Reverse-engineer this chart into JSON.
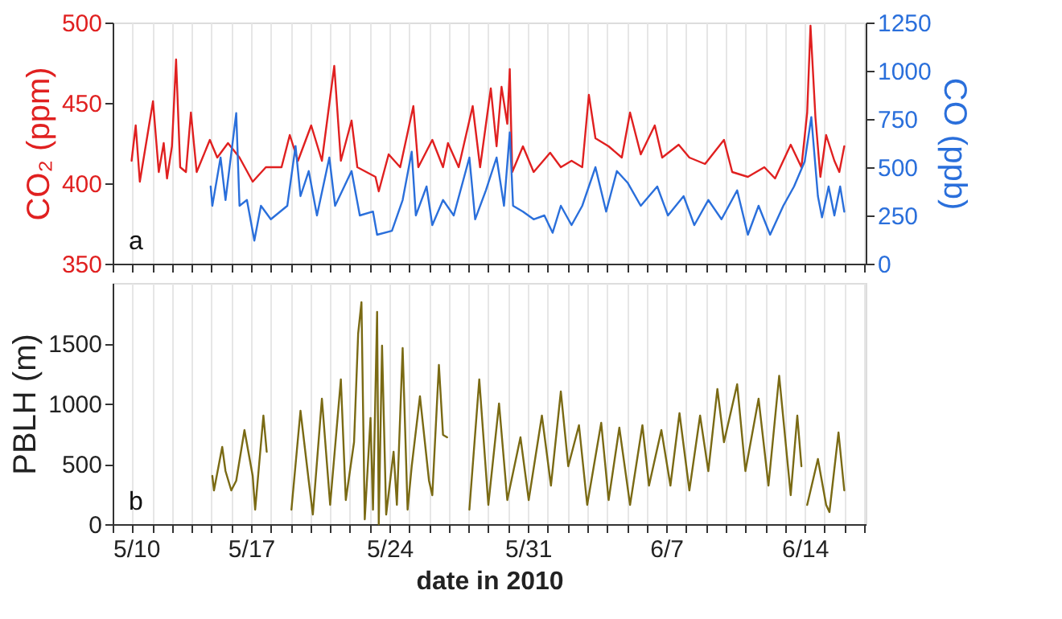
{
  "chart_data": [
    {
      "type": "line",
      "ylabel": "CO₂ (ppm)",
      "y2label": "CO (ppb)",
      "annotations": [
        "a"
      ],
      "grid": "x",
      "tick_labels": "y",
      "xlim": [
        "2010-05-10",
        "2010-06-17T02:00"
      ],
      "xticks": [
        {
          "value": "2010-05-10",
          "label": null
        },
        {
          "value": "2010-05-11",
          "label": null
        },
        {
          "value": "2010-05-12",
          "label": null
        },
        {
          "value": "2010-05-13",
          "label": null
        },
        {
          "value": "2010-05-14",
          "label": null
        },
        {
          "value": "2010-05-15",
          "label": null
        },
        {
          "value": "2010-05-16",
          "label": null
        },
        {
          "value": "2010-05-17",
          "label": null
        },
        {
          "value": "2010-05-18",
          "label": null
        },
        {
          "value": "2010-05-19",
          "label": null
        },
        {
          "value": "2010-05-20",
          "label": null
        },
        {
          "value": "2010-05-21",
          "label": null
        },
        {
          "value": "2010-05-22",
          "label": null
        },
        {
          "value": "2010-05-23",
          "label": null
        },
        {
          "value": "2010-05-24",
          "label": null
        },
        {
          "value": "2010-05-25",
          "label": null
        },
        {
          "value": "2010-05-26",
          "label": null
        },
        {
          "value": "2010-05-27",
          "label": null
        },
        {
          "value": "2010-05-28",
          "label": null
        },
        {
          "value": "2010-05-29",
          "label": null
        },
        {
          "value": "2010-05-30",
          "label": null
        },
        {
          "value": "2010-05-31",
          "label": null
        },
        {
          "value": "2010-06-01",
          "label": null
        },
        {
          "value": "2010-06-02",
          "label": null
        },
        {
          "value": "2010-06-03",
          "label": null
        },
        {
          "value": "2010-06-04",
          "label": null
        },
        {
          "value": "2010-06-05",
          "label": null
        },
        {
          "value": "2010-06-06",
          "label": null
        },
        {
          "value": "2010-06-07",
          "label": null
        },
        {
          "value": "2010-06-08",
          "label": null
        },
        {
          "value": "2010-06-09",
          "label": null
        },
        {
          "value": "2010-06-10",
          "label": null
        },
        {
          "value": "2010-06-11",
          "label": null
        },
        {
          "value": "2010-06-12",
          "label": null
        },
        {
          "value": "2010-06-13",
          "label": null
        },
        {
          "value": "2010-06-14",
          "label": null
        },
        {
          "value": "2010-06-15",
          "label": null
        },
        {
          "value": "2010-06-16",
          "label": null
        },
        {
          "value": "2010-06-17",
          "label": null
        }
      ],
      "ylim": [
        350,
        500
      ],
      "yticks": [
        350,
        400,
        450,
        500
      ],
      "y2lim": [
        0,
        1250
      ],
      "y2ticks": [
        0,
        250,
        500,
        750,
        1000,
        1250
      ],
      "series": [
        {
          "color": "#e02020",
          "x": [
            "2010-05-10T23:00",
            "2010-05-11T04:00",
            "2010-05-11T09:00",
            "2010-05-12T01:00",
            "2010-05-12T08:00",
            "2010-05-12T14:00",
            "2010-05-12T18:00",
            "2010-05-13T00:00",
            "2010-05-13T05:00",
            "2010-05-13T10:00",
            "2010-05-13T17:00",
            "2010-05-13T23:00",
            "2010-05-14T06:00",
            "2010-05-14T22:00",
            "2010-05-15T07:00",
            "2010-05-15T20:00",
            "2010-05-16T10:00",
            "2010-05-17T02:00",
            "2010-05-17T18:00",
            "2010-05-18T13:00",
            "2010-05-18T23:00",
            "2010-05-19T09:00",
            "2010-05-20T01:00",
            "2010-05-20T14:00",
            "2010-05-21T05:00",
            "2010-05-21T13:00",
            "2010-05-22T02:00",
            "2010-05-22T09:00",
            "2010-05-23T07:00",
            "2010-05-23T11:00",
            "2010-05-23T23:00",
            "2010-05-24T13:00",
            "2010-05-25T05:00",
            "2010-05-25T11:00",
            "2010-05-26T04:00",
            "2010-05-26T17:00",
            "2010-05-26T23:00",
            "2010-05-27T12:00",
            "2010-05-28T05:00",
            "2010-05-28T14:00",
            "2010-05-29T03:00",
            "2010-05-29T10:00",
            "2010-05-29T16:00",
            "2010-05-29T23:00",
            "2010-05-30T02:00",
            "2010-05-30T05:00",
            "2010-05-30T18:00",
            "2010-05-31T07:00",
            "2010-06-01T03:00",
            "2010-06-01T16:00",
            "2010-06-02T05:00",
            "2010-06-02T18:00",
            "2010-06-03T02:00",
            "2010-06-03T10:00",
            "2010-06-04T02:00",
            "2010-06-04T18:00",
            "2010-06-05T04:00",
            "2010-06-05T17:00",
            "2010-06-06T10:00",
            "2010-06-06T19:00",
            "2010-06-07T15:00",
            "2010-06-08T04:00",
            "2010-06-08T23:00",
            "2010-06-09T22:00",
            "2010-06-10T08:00",
            "2010-06-11T03:00",
            "2010-06-11T23:00",
            "2010-06-12T12:00",
            "2010-06-13T07:00",
            "2010-06-13T20:00",
            "2010-06-14T03:00",
            "2010-06-14T07:00",
            "2010-06-14T13:00",
            "2010-06-14T19:00",
            "2010-06-15T02:00",
            "2010-06-15T12:00",
            "2010-06-15T18:00",
            "2010-06-16T00:00"
          ],
          "values": [
            414,
            436,
            401,
            451,
            407,
            425,
            403,
            423,
            477,
            410,
            407,
            444,
            407,
            427,
            416,
            425,
            416,
            401,
            410,
            410,
            430,
            414,
            436,
            414,
            473,
            414,
            439,
            410,
            404,
            395,
            418,
            410,
            448,
            410,
            427,
            410,
            425,
            410,
            448,
            410,
            459,
            423,
            460,
            437,
            471,
            407,
            423,
            407,
            419,
            410,
            414,
            410,
            455,
            428,
            423,
            416,
            444,
            418,
            436,
            416,
            424,
            416,
            412,
            427,
            407,
            404,
            410,
            403,
            424,
            410,
            444,
            498,
            441,
            404,
            430,
            414,
            407,
            423
          ]
        },
        {
          "color": "#2a6fdb",
          "axis": "y2",
          "x": [
            "2010-05-14T23:00",
            "2010-05-15T01:00",
            "2010-05-15T11:00",
            "2010-05-15T17:00",
            "2010-05-16T06:00",
            "2010-05-16T10:00",
            "2010-05-16T19:00",
            "2010-05-17T04:00",
            "2010-05-17T12:00",
            "2010-05-18T00:00",
            "2010-05-18T20:00",
            "2010-05-19T06:00",
            "2010-05-19T12:00",
            "2010-05-19T22:00",
            "2010-05-20T08:00",
            "2010-05-20T23:00",
            "2010-05-21T06:00",
            "2010-05-22T02:00",
            "2010-05-22T12:00",
            "2010-05-23T04:00",
            "2010-05-23T09:00",
            "2010-05-24T03:00",
            "2010-05-24T16:00",
            "2010-05-25T03:00",
            "2010-05-25T08:00",
            "2010-05-25T21:00",
            "2010-05-26T04:00",
            "2010-05-26T17:00",
            "2010-05-27T06:00",
            "2010-05-28T01:00",
            "2010-05-28T08:00",
            "2010-05-28T21:00",
            "2010-05-29T10:00",
            "2010-05-29T19:00",
            "2010-05-30T02:00",
            "2010-05-30T06:00",
            "2010-05-30T18:00",
            "2010-05-31T07:00",
            "2010-05-31T20:00",
            "2010-06-01T06:00",
            "2010-06-01T16:00",
            "2010-06-02T05:00",
            "2010-06-02T18:00",
            "2010-06-03T10:00",
            "2010-06-03T23:00",
            "2010-06-04T12:00",
            "2010-06-05T01:00",
            "2010-06-05T17:00",
            "2010-06-06T13:00",
            "2010-06-07T02:00",
            "2010-06-07T21:00",
            "2010-06-08T10:00",
            "2010-06-09T03:00",
            "2010-06-09T19:00",
            "2010-06-10T14:00",
            "2010-06-11T03:00",
            "2010-06-11T16:00",
            "2010-06-12T06:00",
            "2010-06-12T22:00",
            "2010-06-13T11:00",
            "2010-06-14T00:00",
            "2010-06-14T08:00",
            "2010-06-14T16:00",
            "2010-06-14T21:00",
            "2010-06-15T05:00",
            "2010-06-15T12:00",
            "2010-06-15T19:00",
            "2010-06-16T00:00"
          ],
          "values": [
            400,
            300,
            550,
            330,
            780,
            300,
            330,
            120,
            300,
            230,
            300,
            610,
            350,
            480,
            250,
            550,
            300,
            480,
            250,
            270,
            150,
            170,
            330,
            580,
            250,
            400,
            200,
            330,
            250,
            550,
            230,
            380,
            550,
            300,
            680,
            300,
            270,
            230,
            250,
            160,
            300,
            200,
            300,
            500,
            270,
            480,
            420,
            300,
            400,
            250,
            350,
            200,
            330,
            230,
            380,
            150,
            300,
            150,
            300,
            400,
            530,
            760,
            350,
            240,
            400,
            250,
            400,
            270
          ]
        }
      ]
    },
    {
      "type": "line",
      "xlabel": "date in 2010",
      "ylabel": "PBLH (m)",
      "annotations": [
        "b"
      ],
      "grid": "x",
      "xlim": [
        "2010-05-10",
        "2010-06-17T02:00"
      ],
      "xticks": [
        {
          "value": "2010-05-10",
          "label": "5/10"
        },
        {
          "value": "2010-05-11",
          "label": null
        },
        {
          "value": "2010-05-12",
          "label": null
        },
        {
          "value": "2010-05-13",
          "label": null
        },
        {
          "value": "2010-05-14",
          "label": null
        },
        {
          "value": "2010-05-15",
          "label": null
        },
        {
          "value": "2010-05-16",
          "label": null
        },
        {
          "value": "2010-05-17",
          "label": "5/17"
        },
        {
          "value": "2010-05-18",
          "label": null
        },
        {
          "value": "2010-05-19",
          "label": null
        },
        {
          "value": "2010-05-20",
          "label": null
        },
        {
          "value": "2010-05-21",
          "label": null
        },
        {
          "value": "2010-05-22",
          "label": null
        },
        {
          "value": "2010-05-23",
          "label": null
        },
        {
          "value": "2010-05-24",
          "label": "5/24"
        },
        {
          "value": "2010-05-25",
          "label": null
        },
        {
          "value": "2010-05-26",
          "label": null
        },
        {
          "value": "2010-05-27",
          "label": null
        },
        {
          "value": "2010-05-28",
          "label": null
        },
        {
          "value": "2010-05-29",
          "label": null
        },
        {
          "value": "2010-05-30",
          "label": null
        },
        {
          "value": "2010-05-31",
          "label": "5/31"
        },
        {
          "value": "2010-06-01",
          "label": null
        },
        {
          "value": "2010-06-02",
          "label": null
        },
        {
          "value": "2010-06-03",
          "label": null
        },
        {
          "value": "2010-06-04",
          "label": null
        },
        {
          "value": "2010-06-05",
          "label": null
        },
        {
          "value": "2010-06-06",
          "label": null
        },
        {
          "value": "2010-06-07",
          "label": "6/7"
        },
        {
          "value": "2010-06-08",
          "label": null
        },
        {
          "value": "2010-06-09",
          "label": null
        },
        {
          "value": "2010-06-10",
          "label": null
        },
        {
          "value": "2010-06-11",
          "label": null
        },
        {
          "value": "2010-06-12",
          "label": null
        },
        {
          "value": "2010-06-13",
          "label": null
        },
        {
          "value": "2010-06-14",
          "label": "6/14"
        },
        {
          "value": "2010-06-15",
          "label": null
        },
        {
          "value": "2010-06-16",
          "label": null
        },
        {
          "value": "2010-06-17",
          "label": null
        }
      ],
      "ylim": [
        0,
        2000
      ],
      "yticks": [
        0,
        500,
        1000,
        1500
      ],
      "series": [
        {
          "color": "#7a6a14",
          "x": [
            "2010-05-15T01:00",
            "2010-05-15T03:00",
            "2010-05-15T13:00",
            "2010-05-15T17:00",
            "2010-05-16T00:00",
            "2010-05-16T06:00",
            "2010-05-16T16:00",
            "2010-05-17T02:00",
            "2010-05-17T05:00",
            "2010-05-17T15:00",
            "2010-05-17T19:00",
            "2010-05-18T12:00",
            "2010-05-19T01:00",
            "2010-05-19T12:00",
            "2010-05-19T22:00",
            "2010-05-20T03:00",
            "2010-05-20T14:00",
            "2010-05-21T00:00",
            "2010-05-21T13:00",
            "2010-05-21T19:00",
            "2010-05-22T05:00",
            "2010-05-22T10:00",
            "2010-05-22T14:00",
            "2010-05-22T18:00",
            "2010-05-23T01:00",
            "2010-05-23T04:00",
            "2010-05-23T09:00",
            "2010-05-23T11:00",
            "2010-05-23T15:00",
            "2010-05-23T20:00",
            "2010-05-24T05:00",
            "2010-05-24T09:00",
            "2010-05-24T16:00",
            "2010-05-24T22:00",
            "2010-05-25T03:00",
            "2010-05-25T13:00",
            "2010-05-26T00:00",
            "2010-05-26T04:00",
            "2010-05-26T12:00",
            "2010-05-26T17:00",
            "2010-05-26T22:00",
            "2010-05-27T12:00",
            "2010-05-28T01:00",
            "2010-05-28T13:00",
            "2010-05-29T00:00",
            "2010-05-29T13:00",
            "2010-05-29T23:00",
            "2010-05-30T15:00",
            "2010-05-31T01:00",
            "2010-05-31T17:00",
            "2010-06-01T04:00",
            "2010-06-01T16:00",
            "2010-06-02T01:00",
            "2010-06-02T14:00",
            "2010-06-03T00:00",
            "2010-06-03T17:00",
            "2010-06-04T02:00",
            "2010-06-04T15:00",
            "2010-06-05T04:00",
            "2010-06-05T19:00",
            "2010-06-06T03:00",
            "2010-06-06T18:00",
            "2010-06-07T05:00",
            "2010-06-07T16:00",
            "2010-06-08T04:00",
            "2010-06-08T17:00",
            "2010-06-09T03:00",
            "2010-06-09T14:00",
            "2010-06-09T22:00",
            "2010-06-10T14:00",
            "2010-06-11T00:00",
            "2010-06-11T16:00",
            "2010-06-12T04:00",
            "2010-06-12T17:00",
            "2010-06-13T07:00",
            "2010-06-13T15:00",
            "2010-06-13T20:00",
            "2010-06-14T00:00",
            "2010-06-14T03:00",
            "2010-06-14T16:00",
            "2010-06-15T02:00",
            "2010-06-15T06:00",
            "2010-06-15T17:00",
            "2010-06-16T00:00"
          ],
          "values": [
            400,
            280,
            640,
            440,
            280,
            360,
            780,
            400,
            120,
            900,
            600,
            null,
            120,
            940,
            360,
            80,
            1040,
            160,
            1200,
            200,
            680,
            1580,
            1840,
            40,
            880,
            120,
            1760,
            0,
            1480,
            80,
            600,
            160,
            1460,
            120,
            480,
            1060,
            360,
            240,
            1320,
            740,
            720,
            null,
            120,
            1200,
            160,
            1000,
            200,
            720,
            200,
            900,
            320,
            1100,
            480,
            820,
            160,
            840,
            200,
            800,
            160,
            820,
            320,
            780,
            320,
            920,
            280,
            900,
            440,
            1120,
            680,
            1160,
            440,
            1040,
            320,
            1230,
            240,
            900,
            480,
            null,
            160,
            540,
            160,
            100,
            760,
            280
          ]
        }
      ]
    }
  ]
}
